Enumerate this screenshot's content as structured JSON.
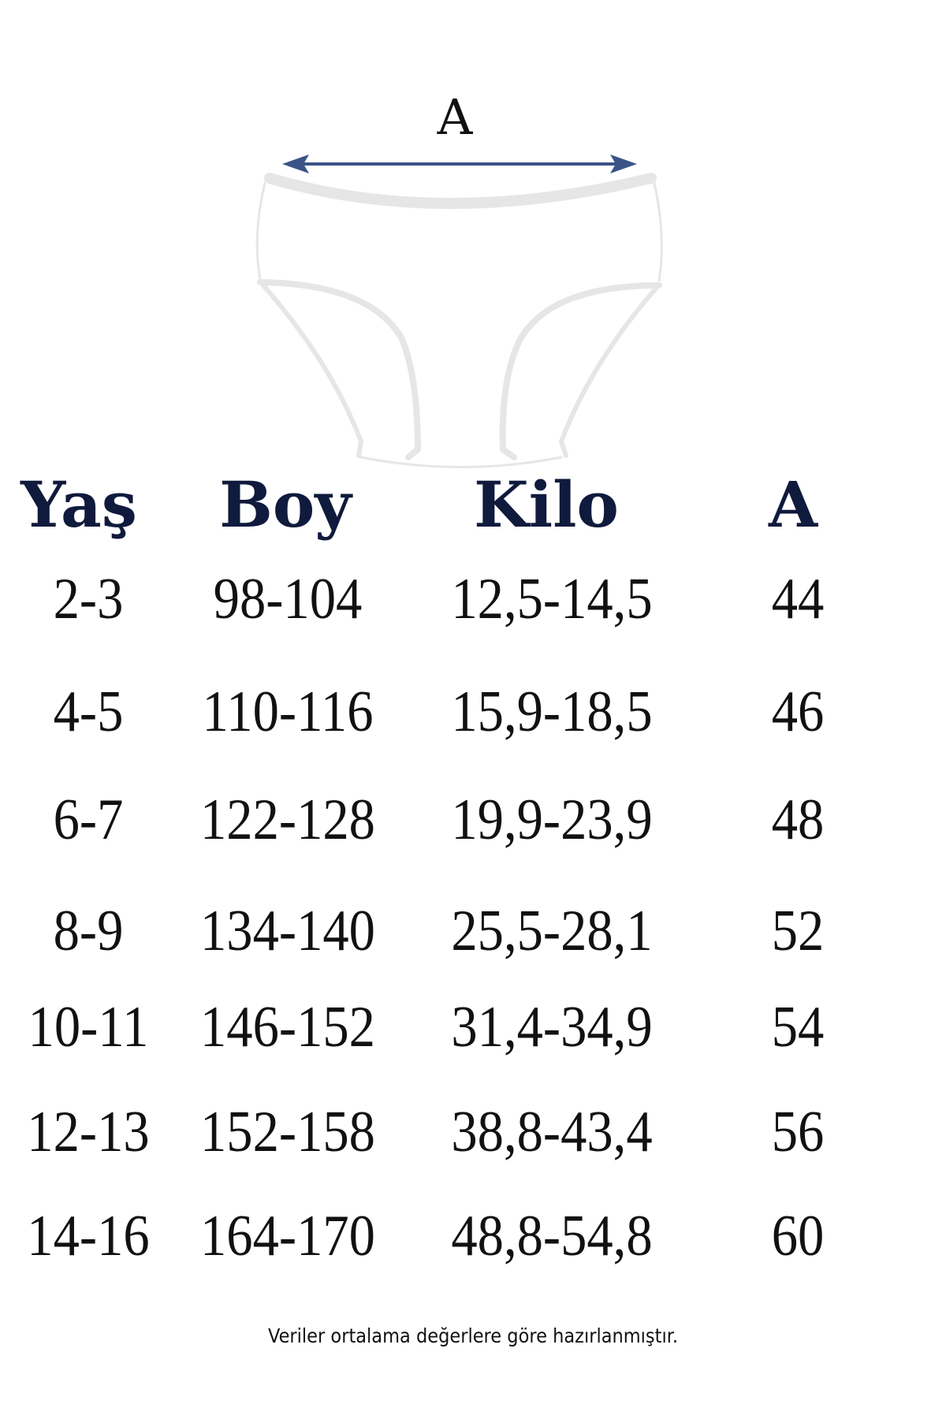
{
  "diagram": {
    "dimension_label": "A",
    "arrow_color": "#3b5487",
    "garment": "briefs-outline"
  },
  "table": {
    "headers": [
      "Yaş",
      "Boy",
      "Kilo",
      "A"
    ],
    "header_color": "#0f1a3c",
    "rows": [
      [
        "2-3",
        "98-104",
        "12,5-14,5",
        "44"
      ],
      [
        "4-5",
        "110-116",
        "15,9-18,5",
        "46"
      ],
      [
        "6-7",
        "122-128",
        "19,9-23,9",
        "48"
      ],
      [
        "8-9",
        "134-140",
        "25,5-28,1",
        "52"
      ],
      [
        "10-11",
        "146-152",
        "31,4-34,9",
        "54"
      ],
      [
        "12-13",
        "152-158",
        "38,8-43,4",
        "56"
      ],
      [
        "14-16",
        "164-170",
        "48,8-54,8",
        "60"
      ]
    ]
  },
  "footer": "Veriler ortalama değerlere göre hazırlanmıştır."
}
